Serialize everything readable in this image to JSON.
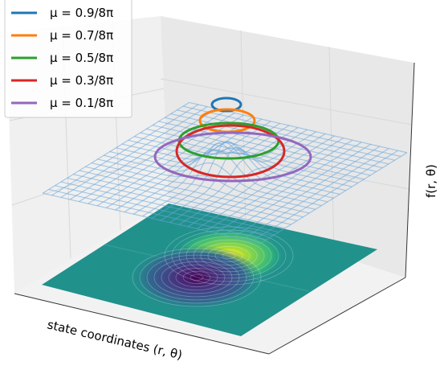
{
  "chart_data": {
    "type": "line",
    "subtype": "3d-surface-with-level-curves-and-contour-floor",
    "xlabel": "state coordinates (r, θ)",
    "ylabel": "",
    "zlabel": "f(r, θ)",
    "legend_position": "top-left",
    "grid": true,
    "series": [
      {
        "name": "μ = 0.9/8π",
        "level": 0.9,
        "color": "#1f77b4"
      },
      {
        "name": "μ = 0.7/8π",
        "level": 0.7,
        "color": "#ff7f0e"
      },
      {
        "name": "μ = 0.5/8π",
        "level": 0.5,
        "color": "#2ca02c"
      },
      {
        "name": "μ = 0.3/8π",
        "level": 0.3,
        "color": "#d62728"
      },
      {
        "name": "μ = 0.1/8π",
        "level": 0.1,
        "color": "#9467bd"
      }
    ],
    "surface": {
      "colormap": "viridis",
      "wireframe_color": "#6aa6d8"
    }
  }
}
